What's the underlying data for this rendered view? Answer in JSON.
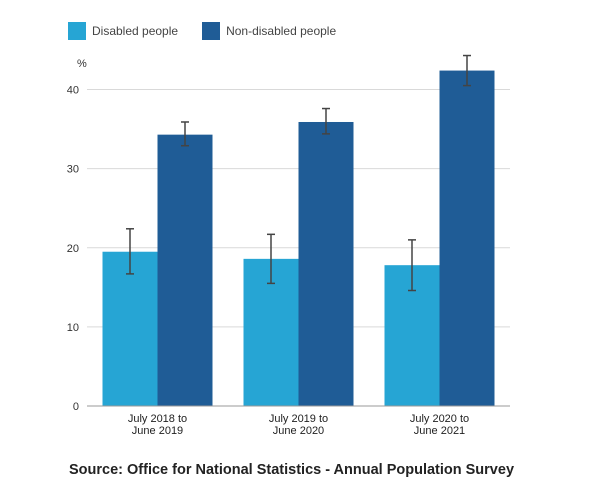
{
  "chart_data": {
    "type": "bar",
    "ylabel": "%",
    "ylim": [
      0,
      45
    ],
    "yticks": [
      0,
      10,
      20,
      30,
      40
    ],
    "grid": true,
    "legend_position": "top-left",
    "categories": [
      [
        "July 2018 to",
        "June 2019"
      ],
      [
        "July 2019 to",
        "June 2020"
      ],
      [
        "July 2020 to",
        "June 2021"
      ]
    ],
    "series": [
      {
        "name": "Disabled people",
        "color": "#26a5d4",
        "values": [
          19.5,
          18.6,
          17.8
        ],
        "error_low": [
          16.7,
          15.5,
          14.6
        ],
        "error_high": [
          22.4,
          21.7,
          21.0
        ]
      },
      {
        "name": "Non-disabled people",
        "color": "#1f5c96",
        "values": [
          34.3,
          35.9,
          42.4
        ],
        "error_low": [
          32.9,
          34.4,
          40.5
        ],
        "error_high": [
          35.9,
          37.6,
          44.3
        ]
      }
    ]
  },
  "legend": {
    "items": [
      {
        "label": "Disabled people",
        "color": "#26a5d4"
      },
      {
        "label": "Non-disabled people",
        "color": "#1f5c96"
      }
    ]
  },
  "source": "Source: Office for National Statistics - Annual Population Survey"
}
